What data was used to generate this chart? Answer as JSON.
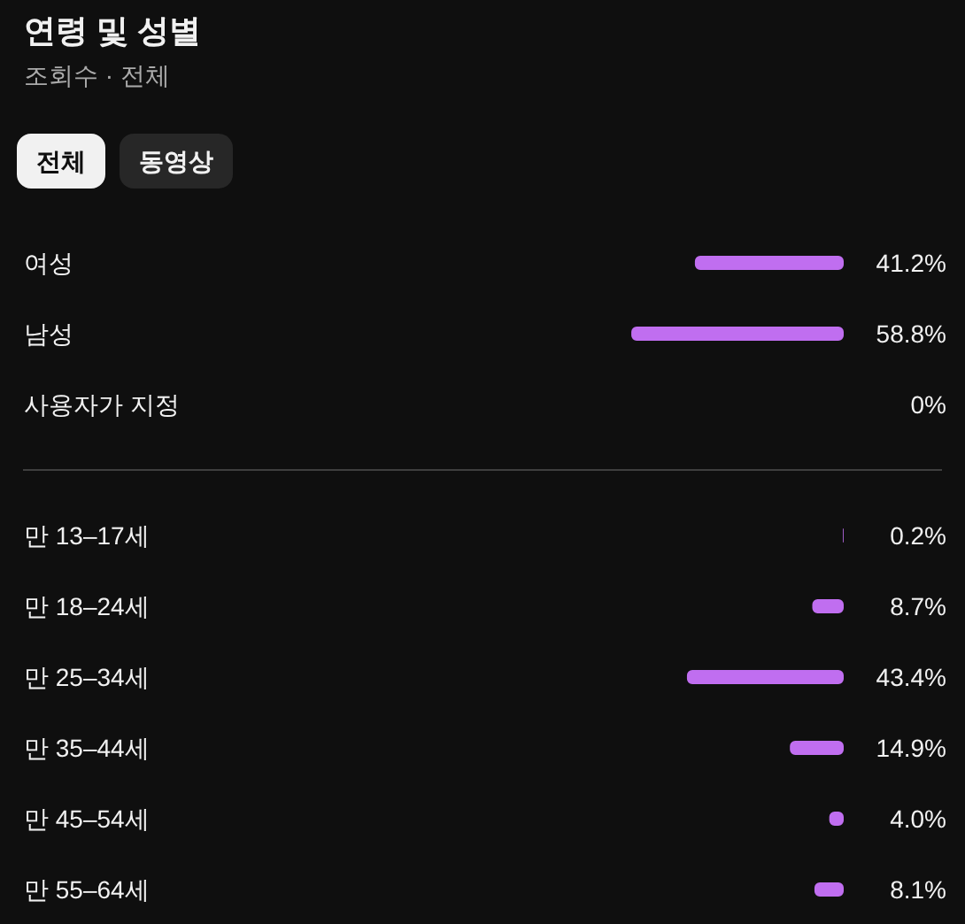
{
  "chart_data": [
    {
      "type": "bar",
      "orientation": "horizontal",
      "title": "연령 및 성별",
      "subtitle": "조회수 · 전체",
      "annotations": [
        "전체",
        "동영상"
      ],
      "categories": [
        "여성",
        "남성",
        "사용자가 지정"
      ],
      "values": [
        41.2,
        58.8,
        0
      ],
      "value_labels": [
        "41.2%",
        "58.8%",
        "0%"
      ],
      "color": "#c06ef0",
      "tick_labels": "y"
    },
    {
      "type": "bar",
      "orientation": "horizontal",
      "categories": [
        "만 13–17세",
        "만 18–24세",
        "만 25–34세",
        "만 35–44세",
        "만 45–54세",
        "만 55–64세"
      ],
      "values": [
        0.2,
        8.7,
        43.4,
        14.9,
        4.0,
        8.1
      ],
      "value_labels": [
        "0.2%",
        "8.7%",
        "43.4%",
        "14.9%",
        "4.0%",
        "8.1%"
      ],
      "color": "#c06ef0",
      "tick_labels": "y"
    }
  ]
}
